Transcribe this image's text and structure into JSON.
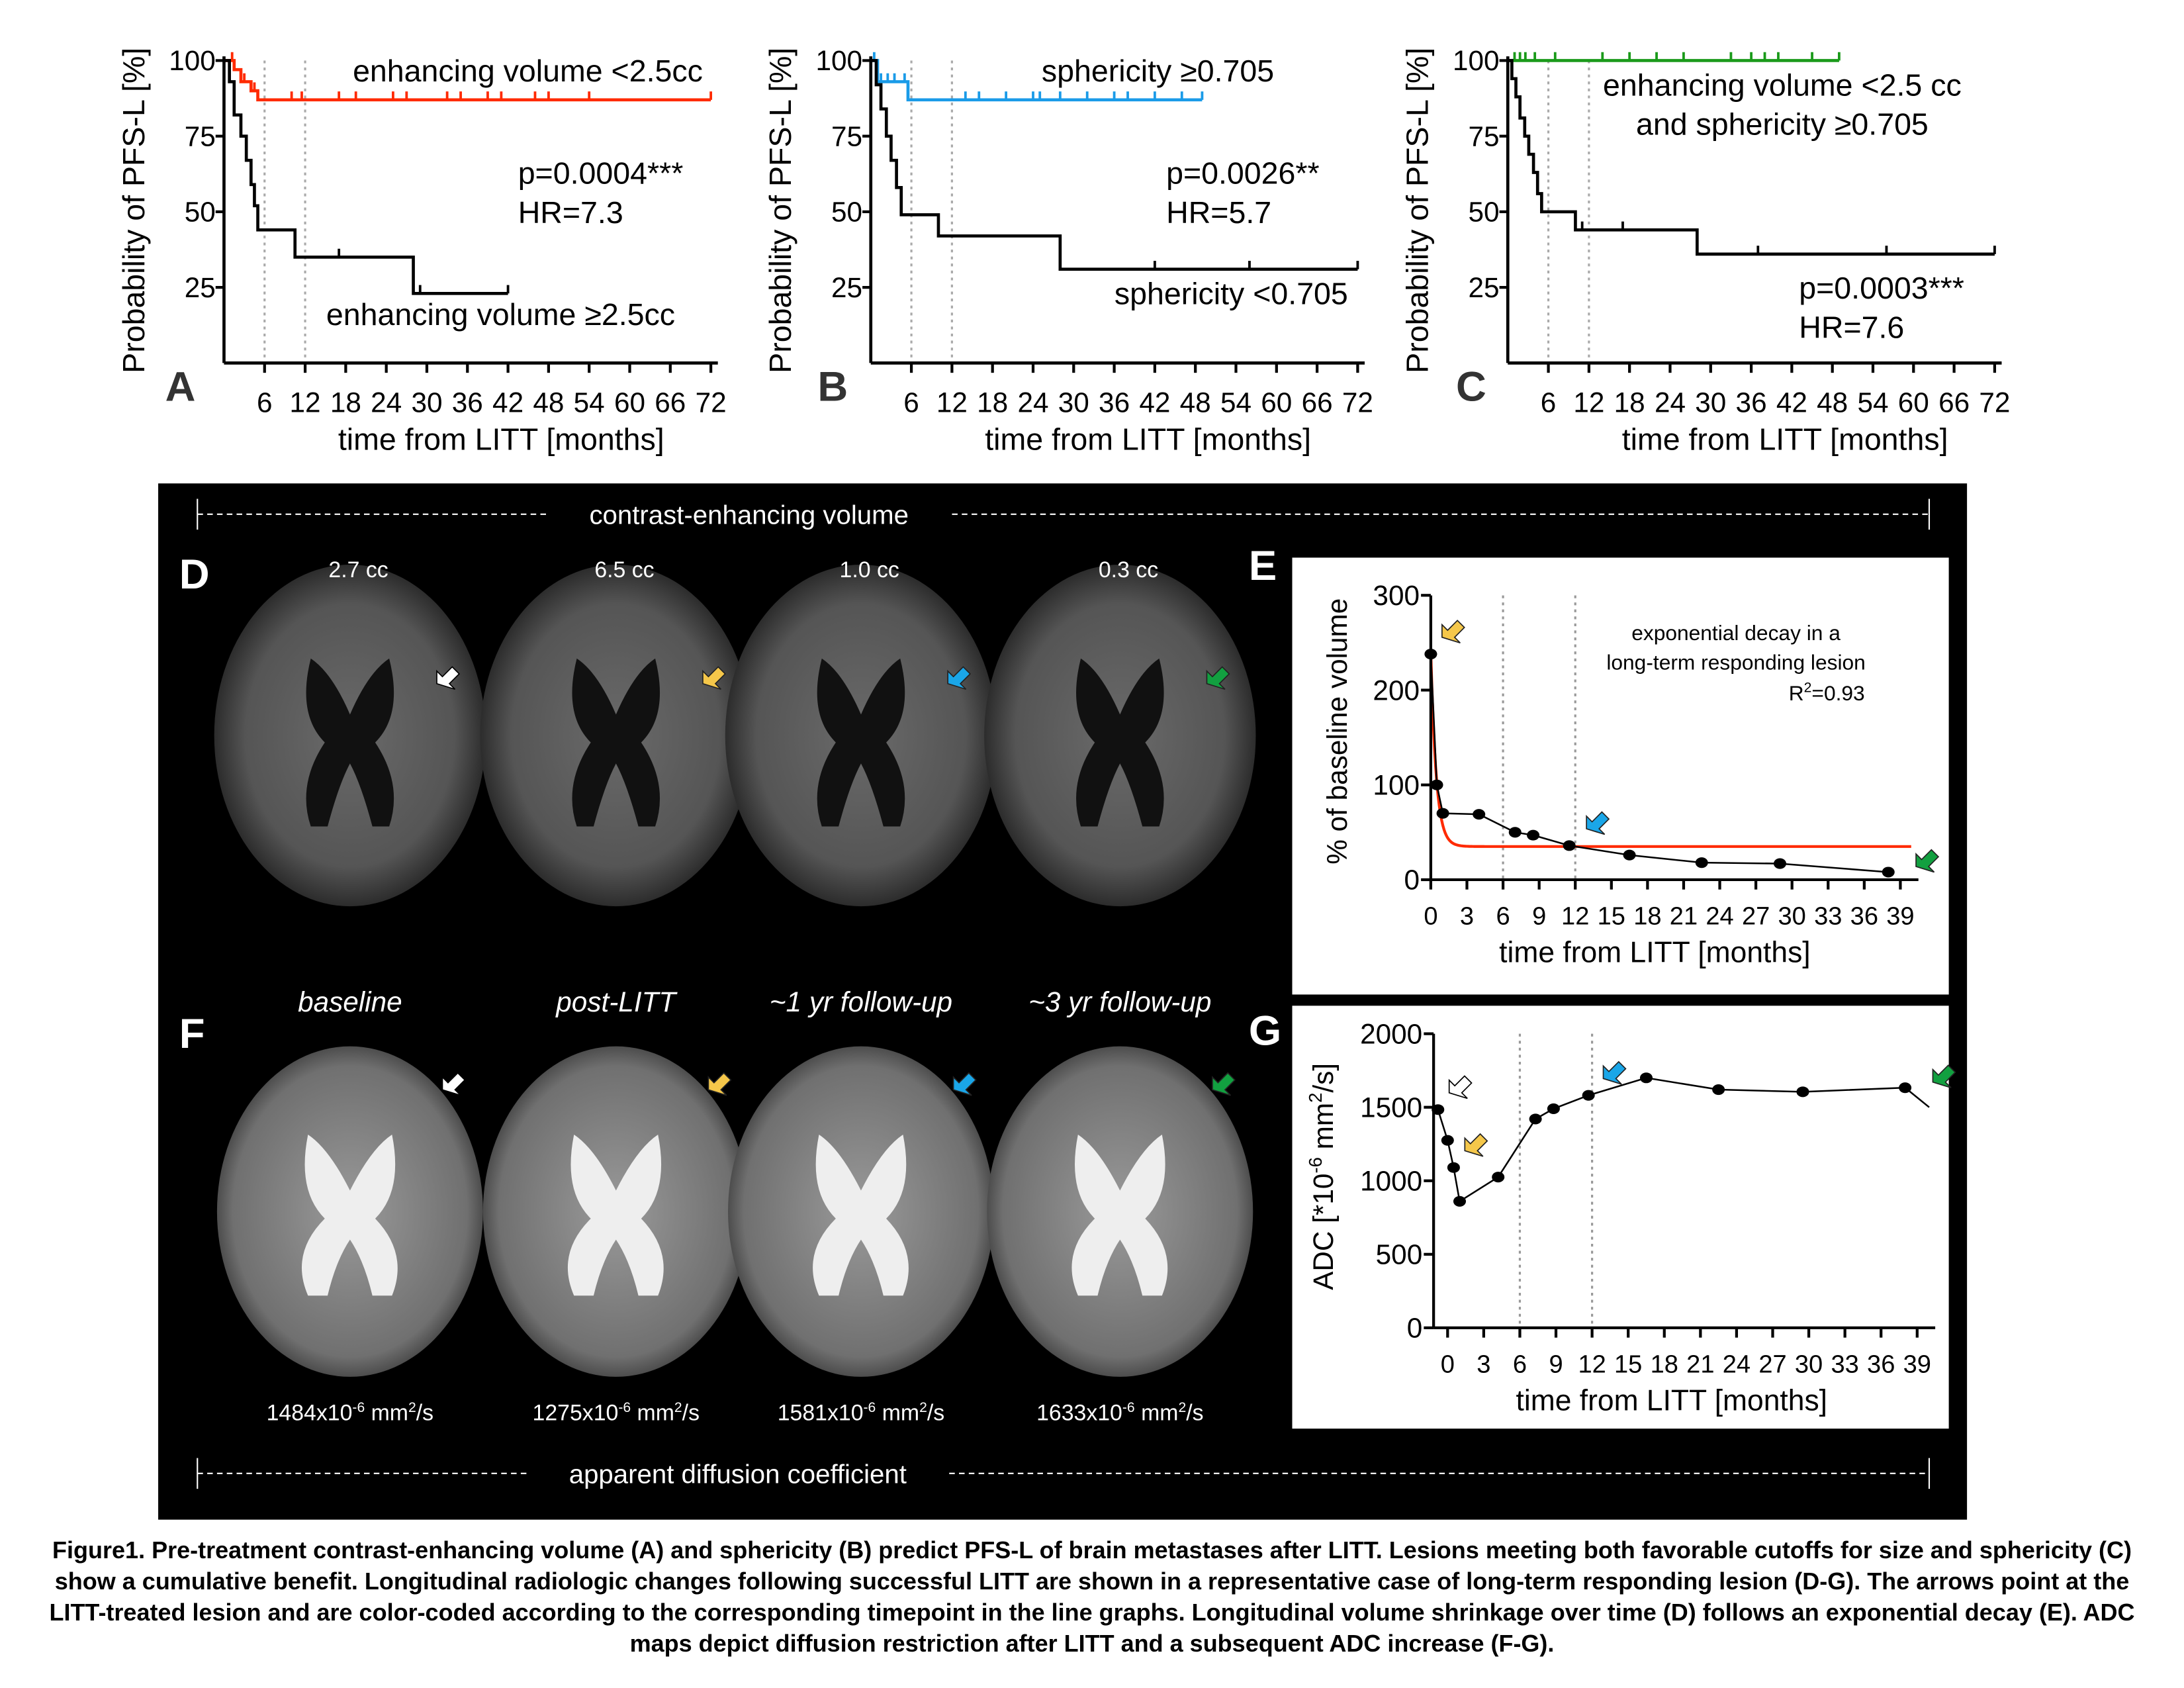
{
  "chart_data": [
    {
      "panel": "A",
      "type": "line",
      "xlabel": "time from LITT [months]",
      "ylabel": "Probability of PFS-L [%]",
      "xticks": [
        "6",
        "12",
        "18",
        "24",
        "30",
        "36",
        "42",
        "48",
        "54",
        "60",
        "66",
        "72"
      ],
      "yticks": [
        "100",
        "75",
        "50",
        "25"
      ],
      "xlim": [
        0,
        72
      ],
      "ylim": [
        0,
        100
      ],
      "reference_lines_x": [
        6,
        12
      ],
      "annotations": [
        "p=0.0004***",
        "HR=7.3"
      ],
      "series": [
        {
          "name": "enhancing volume <2.5cc",
          "color": "#ff2a00",
          "steps": [
            [
              0,
              100
            ],
            [
              1.5,
              97
            ],
            [
              2.5,
              93
            ],
            [
              4,
              90
            ],
            [
              5,
              87
            ],
            [
              72,
              87
            ]
          ],
          "censored": [
            1.2,
            3,
            4.5,
            10,
            11.5,
            17,
            19.5,
            25,
            27,
            33,
            35,
            39,
            41,
            46,
            48,
            54,
            72
          ]
        },
        {
          "name": "enhancing volume ≥2.5cc",
          "color": "#000000",
          "steps": [
            [
              0,
              100
            ],
            [
              0.8,
              93
            ],
            [
              1.5,
              82
            ],
            [
              2.5,
              75
            ],
            [
              3.3,
              67
            ],
            [
              4,
              59
            ],
            [
              4.5,
              52
            ],
            [
              5,
              44
            ],
            [
              10.5,
              35
            ],
            [
              28,
              23
            ],
            [
              42,
              23
            ]
          ],
          "censored": [
            17,
            29,
            42
          ]
        }
      ]
    },
    {
      "panel": "B",
      "type": "line",
      "xlabel": "time from LITT [months]",
      "ylabel": "Probability of PFS-L [%]",
      "xticks": [
        "6",
        "12",
        "18",
        "24",
        "30",
        "36",
        "42",
        "48",
        "54",
        "60",
        "66",
        "72"
      ],
      "yticks": [
        "100",
        "75",
        "50",
        "25"
      ],
      "xlim": [
        0,
        72
      ],
      "ylim": [
        0,
        100
      ],
      "reference_lines_x": [
        6,
        12
      ],
      "annotations": [
        "p=0.0026**",
        "HR=5.7"
      ],
      "series": [
        {
          "name": "sphericity ≥0.705",
          "color": "#1a9be8",
          "steps": [
            [
              0,
              100
            ],
            [
              1,
              93
            ],
            [
              5.5,
              87
            ],
            [
              49,
              87
            ]
          ],
          "censored": [
            0.5,
            1.5,
            2.5,
            3.5,
            5,
            14,
            16,
            20,
            24,
            25,
            28,
            32,
            36,
            38,
            42,
            46,
            49
          ]
        },
        {
          "name": "sphericity <0.705",
          "color": "#000000",
          "steps": [
            [
              0,
              100
            ],
            [
              0.8,
              92
            ],
            [
              1.5,
              84
            ],
            [
              2.3,
              75
            ],
            [
              3,
              67
            ],
            [
              3.8,
              58
            ],
            [
              4.5,
              49
            ],
            [
              10,
              42
            ],
            [
              28,
              31
            ],
            [
              72,
              31
            ]
          ],
          "censored": [
            42,
            56,
            72
          ]
        }
      ]
    },
    {
      "panel": "C",
      "type": "line",
      "xlabel": "time from LITT [months]",
      "ylabel": "Probability of PFS-L [%]",
      "xticks": [
        "6",
        "12",
        "18",
        "24",
        "30",
        "36",
        "42",
        "48",
        "54",
        "60",
        "66",
        "72"
      ],
      "yticks": [
        "100",
        "75",
        "50",
        "25"
      ],
      "xlim": [
        0,
        72
      ],
      "ylim": [
        0,
        100
      ],
      "reference_lines_x": [
        6,
        12
      ],
      "annotations": [
        "enhancing volume <2.5 cc",
        "and sphericity ≥0.705",
        "p=0.0003***",
        "HR=7.6"
      ],
      "series": [
        {
          "name": "enhancing volume <2.5 cc and sphericity ≥0.705",
          "color": "#1a9a1a",
          "steps": [
            [
              0,
              100
            ],
            [
              49,
              100
            ]
          ],
          "censored": [
            1,
            1.8,
            2.6,
            4,
            7,
            14,
            18,
            22,
            26,
            33,
            36,
            38,
            40,
            45,
            49
          ]
        },
        {
          "name": "",
          "color": "#000000",
          "steps": [
            [
              0,
              100
            ],
            [
              0.6,
              94
            ],
            [
              1.2,
              88
            ],
            [
              1.8,
              81
            ],
            [
              2.5,
              75
            ],
            [
              3.1,
              69
            ],
            [
              3.8,
              63
            ],
            [
              4.4,
              56
            ],
            [
              5,
              50
            ],
            [
              10,
              44
            ],
            [
              28,
              36
            ],
            [
              72,
              36
            ]
          ],
          "censored": [
            11,
            17,
            37,
            56,
            72
          ]
        }
      ]
    },
    {
      "panel": "E",
      "type": "line",
      "xlabel": "time from LITT [months]",
      "ylabel": "% of baseline volume",
      "xticks": [
        "0",
        "3",
        "6",
        "9",
        "12",
        "15",
        "18",
        "21",
        "24",
        "27",
        "30",
        "33",
        "36",
        "39"
      ],
      "yticks": [
        "300",
        "200",
        "100",
        "0"
      ],
      "xlim": [
        0,
        40
      ],
      "ylim": [
        0,
        300
      ],
      "reference_lines_x": [
        6,
        12
      ],
      "annotations": [
        "exponential decay in a",
        "long-term responding lesion",
        "R",
        "2",
        "=0.93"
      ],
      "series": [
        {
          "name": "",
          "color": "#000000",
          "x": [
            0,
            0.5,
            1,
            4,
            7,
            8.5,
            11.5,
            16.5,
            22.5,
            29,
            38
          ],
          "y": [
            238,
            100,
            70,
            69,
            50,
            47,
            36,
            26,
            18,
            17,
            8
          ]
        },
        {
          "name": "",
          "color": "#ff2a00",
          "fit": "exponential",
          "plateau": 35,
          "y0": 240
        }
      ],
      "markers": [
        {
          "x": 0,
          "color": "#f5c74a"
        },
        {
          "x": 12,
          "color": "#1aa6e8"
        },
        {
          "x": 39,
          "color": "#12a040"
        }
      ]
    },
    {
      "panel": "G",
      "type": "line",
      "xlabel": "time from LITT [months]",
      "ylabel": "ADC [*10-6 mm2/s]",
      "xticks": [
        "0",
        "3",
        "6",
        "9",
        "12",
        "15",
        "18",
        "21",
        "24",
        "27",
        "30",
        "33",
        "36",
        "39"
      ],
      "yticks": [
        "2000",
        "1500",
        "1000",
        "500",
        "0"
      ],
      "xlim": [
        -1.2,
        40
      ],
      "ylim": [
        0,
        2000
      ],
      "reference_lines_x": [
        6,
        12
      ],
      "series": [
        {
          "name": "",
          "color": "#000000",
          "x": [
            -0.8,
            0,
            0.5,
            1,
            4.2,
            7.3,
            8.8,
            11.7,
            16.5,
            22.5,
            29.5,
            38
          ],
          "y": [
            1484,
            1275,
            1090,
            860,
            1025,
            1420,
            1490,
            1581,
            1700,
            1620,
            1605,
            1633
          ],
          "trail_to": [
            40,
            1500
          ]
        }
      ],
      "markers": [
        {
          "x": -0.8,
          "color": "#ffffff"
        },
        {
          "x": 0.5,
          "color": "#f5c74a"
        },
        {
          "x": 12,
          "color": "#1aa6e8"
        },
        {
          "x": 38,
          "color": "#12a040"
        }
      ]
    }
  ],
  "panels": {
    "A_letter": "A",
    "B_letter": "B",
    "C_letter": "C",
    "D_letter": "D",
    "E_letter": "E",
    "F_letter": "F",
    "G_letter": "G"
  },
  "imaging": {
    "top_header": "contrast-enhancing volume",
    "bottom_header": "apparent diffusion coefficient",
    "volumes": [
      "2.7 cc",
      "6.5 cc",
      "1.0 cc",
      "0.3 cc"
    ],
    "timepoints": [
      "baseline",
      "post-LITT",
      "~1 yr follow-up",
      "~3 yr follow-up"
    ],
    "adc_values": [
      {
        "num": "1484x10",
        "exp": "-6",
        "unit": " mm",
        "sq": "2",
        "tail": "/s"
      },
      {
        "num": "1275x10",
        "exp": "-6",
        "unit": " mm",
        "sq": "2",
        "tail": "/s"
      },
      {
        "num": "1581x10",
        "exp": "-6",
        "unit": " mm",
        "sq": "2",
        "tail": "/s"
      },
      {
        "num": "1633x10",
        "exp": "-6",
        "unit": " mm",
        "sq": "2",
        "tail": "/s"
      }
    ],
    "arrow_colors": [
      "#ffffff",
      "#f5c74a",
      "#1aa6e8",
      "#12a040"
    ]
  },
  "caption": "Figure1. Pre-treatment contrast-enhancing volume (A) and sphericity (B) predict PFS-L of brain metastases after LITT. Lesions meeting both favorable cutoffs for size and sphericity (C) show a cumulative benefit. Longitudinal radiologic changes following successful LITT are shown in a representative case of long-term responding lesion (D-G). The arrows point at the LITT-treated lesion and are color-coded according to the corresponding timepoint in the line graphs. Longitudinal volume shrinkage over time (D) follows an exponential decay (E). ADC maps depict diffusion restriction after LITT and a subsequent ADC increase (F-G)."
}
